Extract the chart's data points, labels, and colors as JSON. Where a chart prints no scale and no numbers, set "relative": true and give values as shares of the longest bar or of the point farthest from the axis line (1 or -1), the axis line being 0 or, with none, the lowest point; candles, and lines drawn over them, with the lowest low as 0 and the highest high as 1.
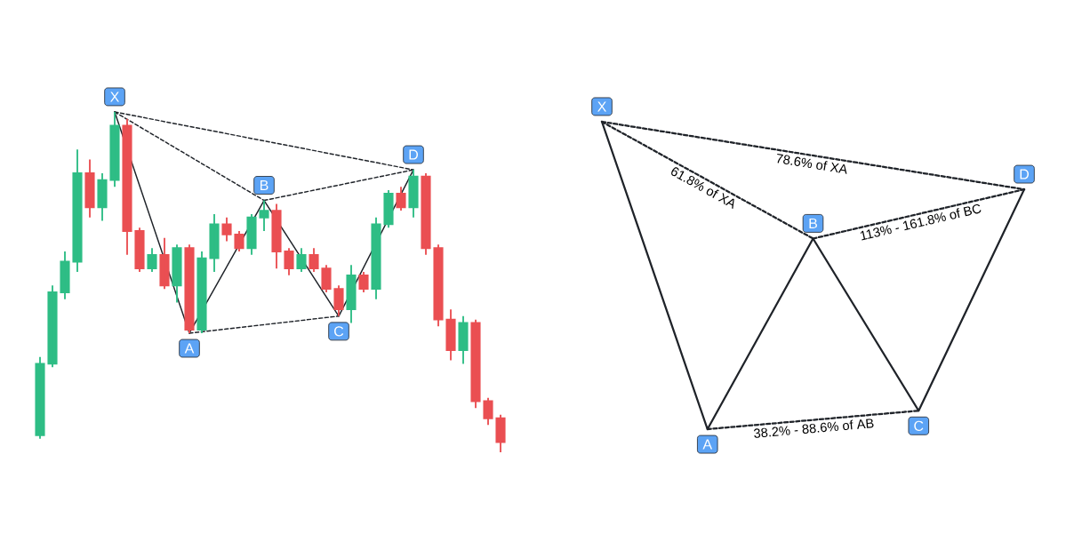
{
  "chart_data": [
    {
      "type": "candlestick",
      "relative": true,
      "categories": [
        null,
        null,
        null,
        null,
        null,
        null,
        null,
        null,
        null,
        null,
        null,
        null,
        null,
        null,
        null,
        null,
        null,
        null,
        null,
        null,
        null,
        null,
        null,
        null,
        null,
        null,
        null,
        null,
        null,
        null,
        null,
        null,
        null,
        null,
        null,
        null,
        null,
        null
      ],
      "ohlc": [
        [
          0.05,
          0.28,
          0.04,
          0.26
        ],
        [
          0.26,
          0.49,
          0.25,
          0.47
        ],
        [
          0.47,
          0.59,
          0.45,
          0.56
        ],
        [
          0.56,
          0.89,
          0.53,
          0.82
        ],
        [
          0.82,
          0.86,
          0.69,
          0.72
        ],
        [
          0.72,
          0.82,
          0.68,
          0.8
        ],
        [
          0.8,
          1.0,
          0.78,
          0.96
        ],
        [
          0.96,
          0.98,
          0.58,
          0.65
        ],
        [
          0.65,
          0.66,
          0.53,
          0.54
        ],
        [
          0.54,
          0.6,
          0.53,
          0.58
        ],
        [
          0.58,
          0.63,
          0.48,
          0.49
        ],
        [
          0.49,
          0.61,
          0.44,
          0.6
        ],
        [
          0.6,
          0.61,
          0.35,
          0.36
        ],
        [
          0.36,
          0.59,
          0.35,
          0.57
        ],
        [
          0.57,
          0.7,
          0.53,
          0.67
        ],
        [
          0.67,
          0.69,
          0.62,
          0.64
        ],
        [
          0.64,
          0.65,
          0.59,
          0.6
        ],
        [
          0.6,
          0.7,
          0.58,
          0.69
        ],
        [
          0.69,
          0.74,
          0.65,
          0.71
        ],
        [
          0.71,
          0.73,
          0.54,
          0.59
        ],
        [
          0.59,
          0.6,
          0.52,
          0.54
        ],
        [
          0.54,
          0.6,
          0.53,
          0.58
        ],
        [
          0.58,
          0.6,
          0.53,
          0.54
        ],
        [
          0.54,
          0.55,
          0.47,
          0.48
        ],
        [
          0.48,
          0.49,
          0.4,
          0.42
        ],
        [
          0.42,
          0.55,
          0.38,
          0.52
        ],
        [
          0.52,
          0.53,
          0.47,
          0.48
        ],
        [
          0.48,
          0.69,
          0.45,
          0.67
        ],
        [
          0.67,
          0.77,
          0.66,
          0.76
        ],
        [
          0.76,
          0.78,
          0.71,
          0.72
        ],
        [
          0.72,
          0.83,
          0.69,
          0.81
        ],
        [
          0.81,
          0.82,
          0.58,
          0.6
        ],
        [
          0.6,
          0.61,
          0.37,
          0.39
        ],
        [
          0.39,
          0.42,
          0.27,
          0.3
        ],
        [
          0.3,
          0.4,
          0.26,
          0.38
        ],
        [
          0.38,
          0.39,
          0.13,
          0.15
        ],
        [
          0.15,
          0.16,
          0.08,
          0.1
        ],
        [
          0.1,
          0.11,
          0.0,
          0.03
        ]
      ],
      "colors": [
        "#2ebd85",
        "#2ebd85",
        "#2ebd85",
        "#2ebd85",
        "#ea4f52",
        "#2ebd85",
        "#2ebd85",
        "#ea4f52",
        "#ea4f52",
        "#2ebd85",
        "#ea4f52",
        "#2ebd85",
        "#ea4f52",
        "#2ebd85",
        "#2ebd85",
        "#ea4f52",
        "#ea4f52",
        "#2ebd85",
        "#2ebd85",
        "#ea4f52",
        "#ea4f52",
        "#2ebd85",
        "#ea4f52",
        "#ea4f52",
        "#ea4f52",
        "#2ebd85",
        "#ea4f52",
        "#2ebd85",
        "#2ebd85",
        "#ea4f52",
        "#2ebd85",
        "#ea4f52",
        "#ea4f52",
        "#ea4f52",
        "#2ebd85",
        "#ea4f52",
        "#ea4f52",
        "#ea4f52"
      ],
      "series": [
        {
          "type": "line",
          "color": "#1f2329",
          "line_style": "solid",
          "values": [
            null,
            null,
            null,
            null,
            null,
            null,
            1.0,
            null,
            null,
            null,
            null,
            null,
            0.35,
            null,
            null,
            null,
            null,
            null,
            0.74,
            null,
            null,
            null,
            null,
            null,
            0.4,
            null,
            null,
            null,
            null,
            null,
            0.83,
            null,
            null,
            null,
            null,
            null,
            null,
            null
          ]
        },
        {
          "type": "line",
          "color": "#1f2329",
          "line_style": "dashed",
          "values": [
            null,
            null,
            null,
            null,
            null,
            null,
            1.0,
            null,
            null,
            null,
            null,
            null,
            null,
            null,
            null,
            null,
            null,
            null,
            0.74,
            null,
            null,
            null,
            null,
            null,
            null,
            null,
            null,
            null,
            null,
            null,
            null,
            null,
            null,
            null,
            null,
            null,
            null,
            null
          ]
        },
        {
          "type": "line",
          "color": "#1f2329",
          "line_style": "dashed",
          "values": [
            null,
            null,
            null,
            null,
            null,
            null,
            1.0,
            null,
            null,
            null,
            null,
            null,
            null,
            null,
            null,
            null,
            null,
            null,
            null,
            null,
            null,
            null,
            null,
            null,
            null,
            null,
            null,
            null,
            null,
            null,
            0.83,
            null,
            null,
            null,
            null,
            null,
            null,
            null
          ]
        },
        {
          "type": "line",
          "color": "#1f2329",
          "line_style": "dashed",
          "values": [
            null,
            null,
            null,
            null,
            null,
            null,
            null,
            null,
            null,
            null,
            null,
            null,
            0.35,
            null,
            null,
            null,
            null,
            null,
            null,
            null,
            null,
            null,
            null,
            null,
            0.4,
            null,
            null,
            null,
            null,
            null,
            null,
            null,
            null,
            null,
            null,
            null,
            null,
            null
          ]
        },
        {
          "type": "line",
          "color": "#1f2329",
          "line_style": "dashed",
          "values": [
            null,
            null,
            null,
            null,
            null,
            null,
            null,
            null,
            null,
            null,
            null,
            null,
            null,
            null,
            null,
            null,
            null,
            null,
            0.74,
            null,
            null,
            null,
            null,
            null,
            null,
            null,
            null,
            null,
            null,
            null,
            0.83,
            null,
            null,
            null,
            null,
            null,
            null,
            null
          ]
        }
      ],
      "annotations": [
        {
          "text": "X",
          "y": 1.0
        },
        {
          "text": "A",
          "y": 0.35
        },
        {
          "text": "B",
          "y": 0.74
        },
        {
          "text": "C",
          "y": 0.4
        },
        {
          "text": "D",
          "y": 0.83
        }
      ]
    },
    {
      "type": "line",
      "relative": true,
      "categories": [
        null,
        null,
        null,
        null,
        null
      ],
      "series": [
        {
          "color": "#1f2329",
          "line_style": "solid",
          "values": [
            1.0,
            0.0,
            0.62,
            0.06,
            0.78
          ]
        },
        {
          "name": "61.8% of XA",
          "color": "#1f2329",
          "line_style": "dashed",
          "values": [
            1.0,
            null,
            0.62,
            null,
            null
          ]
        },
        {
          "name": "78.6% of XA",
          "color": "#1f2329",
          "line_style": "dashed",
          "values": [
            1.0,
            null,
            null,
            null,
            0.78
          ]
        },
        {
          "name": "113% - 161.8% of BC",
          "color": "#1f2329",
          "line_style": "dashed",
          "values": [
            null,
            null,
            0.62,
            null,
            0.78
          ]
        },
        {
          "name": "38.2% - 88.6% of AB",
          "color": "#1f2329",
          "line_style": "dashed",
          "values": [
            null,
            0.0,
            null,
            0.06,
            null
          ]
        }
      ],
      "annotations": [
        {
          "text": "X",
          "y": 1.0
        },
        {
          "text": "A",
          "y": 0.0
        },
        {
          "text": "B",
          "y": 0.62
        },
        {
          "text": "C",
          "y": 0.06
        },
        {
          "text": "D",
          "y": 0.78
        }
      ]
    }
  ]
}
